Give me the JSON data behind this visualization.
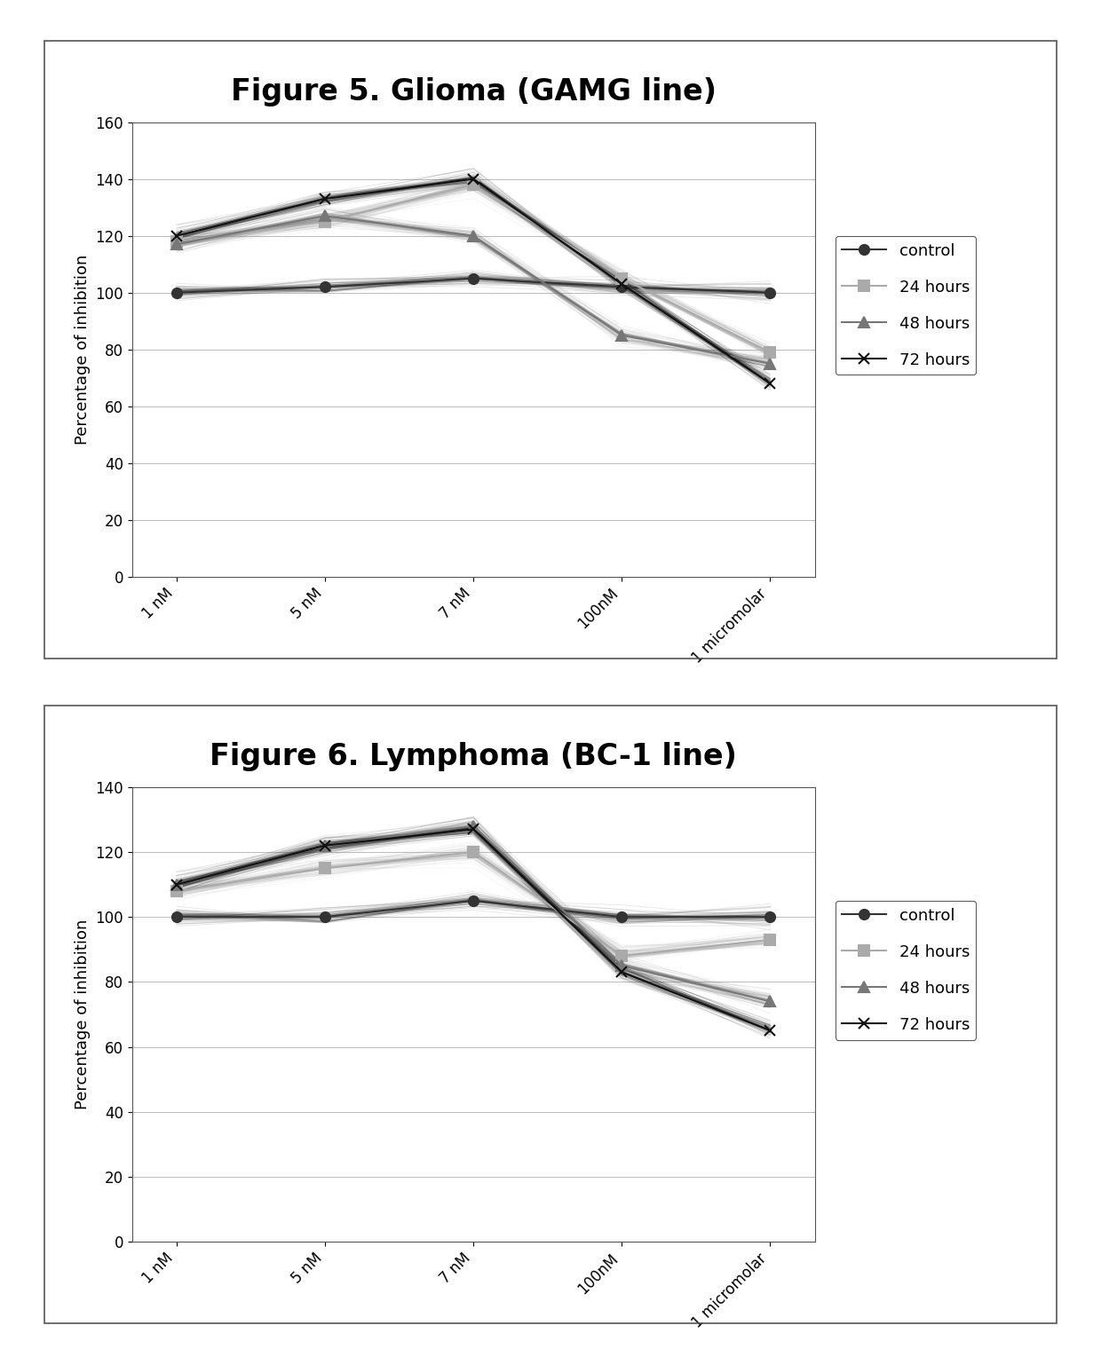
{
  "fig5": {
    "title": "Figure 5. Glioma (GAMG line)",
    "ylabel": "Percentage of inhibition",
    "xlabels": [
      "1 nM",
      "5 nM",
      "7 nM",
      "100nM",
      "1 micromolar"
    ],
    "ylim": [
      0,
      160
    ],
    "yticks": [
      0,
      20,
      40,
      60,
      80,
      100,
      120,
      140,
      160
    ],
    "series": {
      "control": [
        100,
        102,
        105,
        102,
        100
      ],
      "24 hours": [
        118,
        125,
        138,
        105,
        79
      ],
      "48 hours": [
        117,
        127,
        120,
        85,
        75
      ],
      "72 hours": [
        120,
        133,
        140,
        103,
        68
      ]
    },
    "colors": {
      "control": "#333333",
      "24 hours": "#aaaaaa",
      "48 hours": "#777777",
      "72 hours": "#111111"
    },
    "markers": {
      "control": "o",
      "24 hours": "s",
      "48 hours": "^",
      "72 hours": "x"
    }
  },
  "fig6": {
    "title": "Figure 6. Lymphoma (BC-1 line)",
    "ylabel": "Percentage of inhibition",
    "xlabels": [
      "1 nM",
      "5 nM",
      "7 nM",
      "100nM",
      "1 micromolar"
    ],
    "ylim": [
      0,
      140
    ],
    "yticks": [
      0,
      20,
      40,
      60,
      80,
      100,
      120,
      140
    ],
    "series": {
      "control": [
        100,
        100,
        105,
        100,
        100
      ],
      "24 hours": [
        108,
        115,
        120,
        88,
        93
      ],
      "48 hours": [
        110,
        122,
        128,
        85,
        74
      ],
      "72 hours": [
        110,
        122,
        127,
        83,
        65
      ]
    },
    "colors": {
      "control": "#333333",
      "24 hours": "#aaaaaa",
      "48 hours": "#777777",
      "72 hours": "#111111"
    },
    "markers": {
      "control": "o",
      "24 hours": "s",
      "48 hours": "^",
      "72 hours": "x"
    }
  },
  "background_color": "#ffffff",
  "plot_bg": "#ffffff",
  "title_fontsize": 24,
  "axis_fontsize": 13,
  "tick_fontsize": 12,
  "legend_fontsize": 13,
  "linewidth": 1.5,
  "markersize": 8,
  "grid_color": "#bbbbbb",
  "series_order": [
    "control",
    "24 hours",
    "48 hours",
    "72 hours"
  ]
}
